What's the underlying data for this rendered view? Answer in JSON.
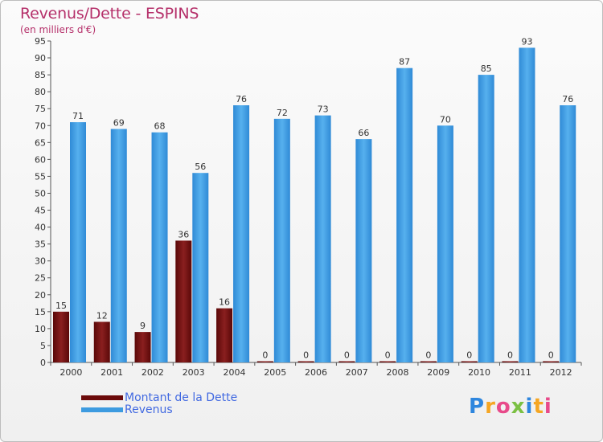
{
  "header": {
    "title": "Revenus/Dette - ESPINS",
    "subtitle": "(en milliers d'€)"
  },
  "legend": {
    "items": [
      {
        "label": "Montant de la Dette",
        "color": "#6b0a0a"
      },
      {
        "label": "Revenus",
        "color": "#3d9be0"
      }
    ]
  },
  "logo": {
    "text": "Proxiti",
    "colors": [
      "#2e86de",
      "#f5a623",
      "#e84a8a",
      "#7bc043",
      "#2e86de",
      "#f5a623",
      "#e84a8a"
    ]
  },
  "chart_data": {
    "type": "bar",
    "title": "Revenus/Dette - ESPINS",
    "subtitle": "(en milliers d'€)",
    "categories": [
      "2000",
      "2001",
      "2002",
      "2003",
      "2004",
      "2005",
      "2006",
      "2007",
      "2008",
      "2009",
      "2010",
      "2011",
      "2012"
    ],
    "series": [
      {
        "name": "Montant de la Dette",
        "color": "#6b0a0a",
        "values": [
          15,
          12,
          9,
          36,
          16,
          0,
          0,
          0,
          0,
          0,
          0,
          0,
          0
        ]
      },
      {
        "name": "Revenus",
        "color": "#3d9be0",
        "values": [
          71,
          69,
          68,
          56,
          76,
          72,
          73,
          66,
          87,
          70,
          85,
          93,
          76
        ]
      }
    ],
    "ylim": [
      0,
      95
    ],
    "yticks": [
      0,
      5,
      10,
      15,
      20,
      25,
      30,
      35,
      40,
      45,
      50,
      55,
      60,
      65,
      70,
      75,
      80,
      85,
      90,
      95
    ],
    "grid": false,
    "legend_position": "bottom-left"
  }
}
